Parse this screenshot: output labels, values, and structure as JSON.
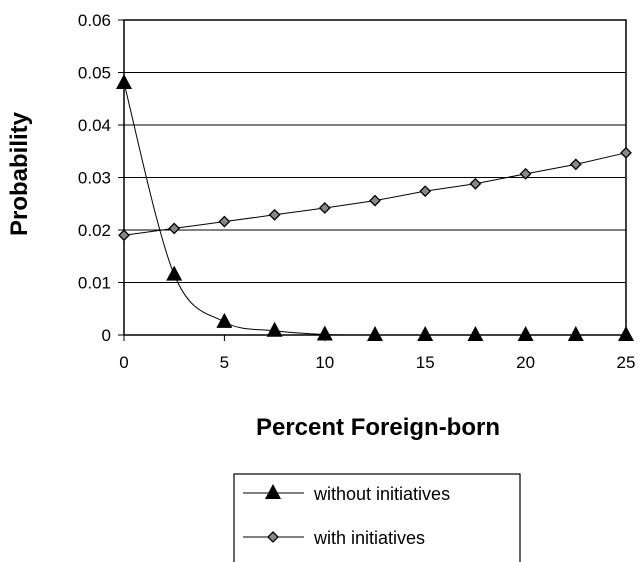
{
  "chart_data": {
    "type": "line",
    "title": "",
    "xlabel": "Percent Foreign-born",
    "ylabel": "Probability",
    "x": [
      0,
      2.5,
      5,
      7.5,
      10,
      12.5,
      15,
      17.5,
      20,
      22.5,
      25
    ],
    "xlim": [
      0,
      25
    ],
    "ylim": [
      0,
      0.06
    ],
    "x_ticks": [
      0,
      5,
      10,
      15,
      20,
      25
    ],
    "x_tick_labels": [
      "0",
      "5",
      "10",
      "15",
      "20",
      "25"
    ],
    "y_ticks": [
      0,
      0.01,
      0.02,
      0.03,
      0.04,
      0.05,
      0.06
    ],
    "y_tick_labels": [
      "0",
      "0.01",
      "0.02",
      "0.03",
      "0.04",
      "0.05",
      "0.06"
    ],
    "grid": "horizontal",
    "legend_position": "bottom",
    "series": [
      {
        "name": "without initiatives",
        "marker": "triangle",
        "values": [
          0.048,
          0.0115,
          0.0025,
          0.0008,
          0.0001,
          0.0,
          0.0,
          0.0,
          0.0,
          0.0,
          0.0
        ]
      },
      {
        "name": "with initiatives",
        "marker": "diamond",
        "values": [
          0.019,
          0.0203,
          0.0216,
          0.0229,
          0.0242,
          0.0256,
          0.0274,
          0.0288,
          0.0307,
          0.0325,
          0.0347
        ]
      }
    ]
  }
}
